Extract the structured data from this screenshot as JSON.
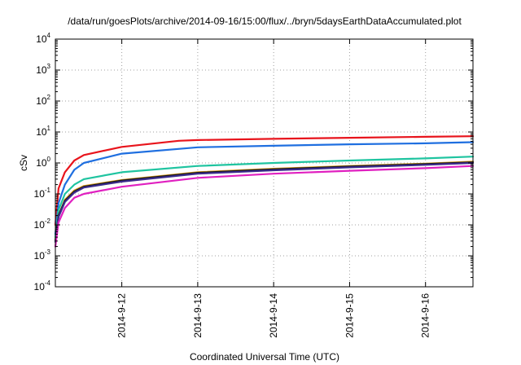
{
  "chart_data": {
    "type": "line",
    "title": "/data/run/goesPlots/archive/2014-09-16/15:00/flux/../bryn/5daysEarthDataAccumulated.plot",
    "xlabel": "Coordinated Universal Time (UTC)",
    "ylabel": "cSv",
    "y_scale": "log",
    "ylim": [
      0.0001,
      10000
    ],
    "y_ticks": [
      {
        "value": 0.0001,
        "base": "10",
        "exp": "-4"
      },
      {
        "value": 0.001,
        "base": "10",
        "exp": "-3"
      },
      {
        "value": 0.01,
        "base": "10",
        "exp": "-2"
      },
      {
        "value": 0.1,
        "base": "10",
        "exp": "-1"
      },
      {
        "value": 1,
        "base": "10",
        "exp": "0"
      },
      {
        "value": 10,
        "base": "10",
        "exp": "1"
      },
      {
        "value": 100,
        "base": "10",
        "exp": "2"
      },
      {
        "value": 1000,
        "base": "10",
        "exp": "3"
      },
      {
        "value": 10000,
        "base": "10",
        "exp": "4"
      }
    ],
    "xlim": [
      "2014-09-11 03:00",
      "2014-09-16 15:00"
    ],
    "x_ticks": [
      "2014-9-12",
      "2014-9-13",
      "2014-9-14",
      "2014-9-15",
      "2014-9-16"
    ],
    "grid": true,
    "series": [
      {
        "color": "#e8141c",
        "x": [
          "2014-09-11 03:00",
          "2014-09-11 04:00",
          "2014-09-11 06:00",
          "2014-09-11 09:00",
          "2014-09-11 12:00",
          "2014-09-12 00:00",
          "2014-09-12 18:00",
          "2014-09-13 00:00",
          "2014-09-14 00:00",
          "2014-09-15 00:00",
          "2014-09-16 00:00",
          "2014-09-16 15:00"
        ],
        "values": [
          0.01,
          0.15,
          0.5,
          1.2,
          1.8,
          3.3,
          5.2,
          5.5,
          6.0,
          6.5,
          7.0,
          7.3
        ]
      },
      {
        "color": "#1f6fe0",
        "x": [
          "2014-09-11 03:00",
          "2014-09-11 04:00",
          "2014-09-11 06:00",
          "2014-09-11 09:00",
          "2014-09-11 12:00",
          "2014-09-12 00:00",
          "2014-09-13 00:00",
          "2014-09-14 00:00",
          "2014-09-15 00:00",
          "2014-09-16 00:00",
          "2014-09-16 15:00"
        ],
        "values": [
          0.005,
          0.05,
          0.2,
          0.6,
          1.0,
          2.0,
          3.2,
          3.6,
          4.0,
          4.3,
          4.7
        ]
      },
      {
        "color": "#1fc4a0",
        "x": [
          "2014-09-11 03:00",
          "2014-09-11 04:00",
          "2014-09-11 06:00",
          "2014-09-11 09:00",
          "2014-09-11 12:00",
          "2014-09-12 00:00",
          "2014-09-13 00:00",
          "2014-09-14 00:00",
          "2014-09-15 00:00",
          "2014-09-16 00:00",
          "2014-09-16 15:00"
        ],
        "values": [
          0.004,
          0.03,
          0.1,
          0.2,
          0.3,
          0.5,
          0.8,
          1.0,
          1.2,
          1.4,
          1.6
        ]
      },
      {
        "color": "#e0a020",
        "x": [
          "2014-09-11 03:00",
          "2014-09-11 04:00",
          "2014-09-11 06:00",
          "2014-09-11 09:00",
          "2014-09-11 12:00",
          "2014-09-12 00:00",
          "2014-09-13 00:00",
          "2014-09-14 00:00",
          "2014-09-15 00:00",
          "2014-09-16 00:00",
          "2014-09-16 15:00"
        ],
        "values": [
          0.003,
          0.02,
          0.065,
          0.13,
          0.18,
          0.28,
          0.5,
          0.65,
          0.8,
          0.95,
          1.1
        ]
      },
      {
        "color": "#1a1a1a",
        "x": [
          "2014-09-11 03:00",
          "2014-09-11 04:00",
          "2014-09-11 06:00",
          "2014-09-11 09:00",
          "2014-09-11 12:00",
          "2014-09-12 00:00",
          "2014-09-13 00:00",
          "2014-09-14 00:00",
          "2014-09-15 00:00",
          "2014-09-16 00:00",
          "2014-09-16 15:00"
        ],
        "values": [
          0.003,
          0.02,
          0.06,
          0.12,
          0.17,
          0.27,
          0.48,
          0.62,
          0.77,
          0.92,
          1.05
        ]
      },
      {
        "color": "#3a2a8c",
        "x": [
          "2014-09-11 03:00",
          "2014-09-11 04:00",
          "2014-09-11 06:00",
          "2014-09-11 09:00",
          "2014-09-11 12:00",
          "2014-09-12 00:00",
          "2014-09-13 00:00",
          "2014-09-14 00:00",
          "2014-09-15 00:00",
          "2014-09-16 00:00",
          "2014-09-16 15:00"
        ],
        "values": [
          0.0028,
          0.018,
          0.055,
          0.11,
          0.16,
          0.25,
          0.45,
          0.58,
          0.72,
          0.87,
          1.0
        ]
      },
      {
        "color": "#e020c0",
        "x": [
          "2014-09-11 03:00",
          "2014-09-11 04:00",
          "2014-09-11 06:00",
          "2014-09-11 09:00",
          "2014-09-11 12:00",
          "2014-09-12 00:00",
          "2014-09-13 00:00",
          "2014-09-14 00:00",
          "2014-09-15 00:00",
          "2014-09-16 00:00",
          "2014-09-16 15:00"
        ],
        "values": [
          0.002,
          0.012,
          0.035,
          0.075,
          0.1,
          0.17,
          0.33,
          0.45,
          0.56,
          0.68,
          0.8
        ]
      }
    ]
  }
}
